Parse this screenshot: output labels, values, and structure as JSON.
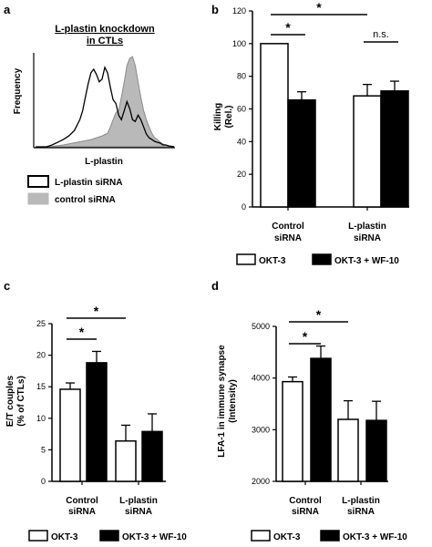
{
  "colors": {
    "white_bar": "#ffffff",
    "black_bar": "#000000",
    "control_fill": "#b9b9b9",
    "stroke": "#000000"
  },
  "panel_a": {
    "letter": "a",
    "title_line1": "L-plastin knockdown",
    "title_line2": "in CTLs",
    "xlabel": "L-plastin",
    "ylabel": "Frequency",
    "legend": [
      {
        "label": "L-plastin siRNA",
        "style": "open"
      },
      {
        "label": "control siRNA",
        "style": "filled-gray"
      }
    ]
  },
  "panel_b": {
    "letter": "b",
    "ylabel_line1": "Killing",
    "ylabel_line2": "(Rel.)",
    "groups": [
      {
        "line1": "Control",
        "line2": "siRNA"
      },
      {
        "line1": "L-plastin",
        "line2": "siRNA"
      }
    ],
    "legend": [
      {
        "label": "OKT-3",
        "style": "white"
      },
      {
        "label": "OKT-3 + WF-10",
        "style": "black"
      }
    ],
    "annotations": {
      "star": "*",
      "ns": "n.s."
    }
  },
  "panel_c": {
    "letter": "c",
    "ylabel_line1": "E/T couples",
    "ylabel_line2": "(% of CTLs)",
    "groups": [
      {
        "line1": "Control",
        "line2": "siRNA"
      },
      {
        "line1": "L-plastin",
        "line2": "siRNA"
      }
    ],
    "legend": [
      {
        "label": "OKT-3",
        "style": "white"
      },
      {
        "label": "OKT-3 + WF-10",
        "style": "black"
      }
    ],
    "annotations": {
      "star": "*"
    }
  },
  "panel_d": {
    "letter": "d",
    "ylabel_line1": "LFA-1 in immune synapse",
    "ylabel_line2": "(Intensity)",
    "groups": [
      {
        "line1": "Control",
        "line2": "siRNA"
      },
      {
        "line1": "L-plastin",
        "line2": "siRNA"
      }
    ],
    "legend": [
      {
        "label": "OKT-3",
        "style": "white"
      },
      {
        "label": "OKT-3 + WF-10",
        "style": "black"
      }
    ],
    "annotations": {
      "star": "*"
    }
  },
  "chart_data": [
    {
      "panel": "a",
      "type": "area",
      "title": "L-plastin knockdown in CTLs",
      "xlabel": "L-plastin",
      "ylabel": "Frequency",
      "series": [
        {
          "name": "L-plastin siRNA",
          "style": "open outline",
          "x": [
            0,
            4,
            8,
            12,
            16,
            20,
            24,
            28,
            32,
            34,
            36,
            38,
            40,
            42,
            44,
            46,
            48,
            50,
            52,
            54,
            56,
            58,
            60,
            62,
            64,
            66,
            68,
            70,
            72,
            74,
            76,
            78,
            80,
            82,
            84,
            86,
            88,
            90,
            92,
            94,
            96,
            100
          ],
          "values": [
            0,
            0,
            0,
            0.02,
            0.05,
            0.08,
            0.12,
            0.18,
            0.3,
            0.4,
            0.55,
            0.7,
            0.82,
            0.86,
            0.8,
            0.72,
            0.75,
            0.88,
            0.82,
            0.66,
            0.52,
            0.48,
            0.35,
            0.3,
            0.4,
            0.5,
            0.42,
            0.3,
            0.28,
            0.35,
            0.3,
            0.22,
            0.14,
            0.1,
            0.08,
            0.06,
            0.05,
            0.04,
            0.02,
            0.02,
            0.01,
            0
          ]
        },
        {
          "name": "control siRNA",
          "style": "filled gray",
          "x": [
            0,
            10,
            20,
            30,
            40,
            44,
            48,
            52,
            54,
            56,
            58,
            60,
            62,
            64,
            66,
            68,
            70,
            72,
            74,
            76,
            78,
            80,
            82,
            84,
            86,
            88,
            90,
            92,
            94,
            96,
            100
          ],
          "values": [
            0,
            0,
            0.02,
            0.05,
            0.08,
            0.1,
            0.12,
            0.15,
            0.22,
            0.3,
            0.38,
            0.4,
            0.55,
            0.72,
            0.9,
            0.98,
            1.0,
            0.9,
            0.72,
            0.55,
            0.4,
            0.3,
            0.22,
            0.15,
            0.1,
            0.08,
            0.05,
            0.03,
            0.02,
            0.01,
            0
          ]
        }
      ]
    },
    {
      "panel": "b",
      "type": "bar",
      "ylabel": "Killing (Rel.)",
      "ylim": [
        0,
        120
      ],
      "yticks": [
        0,
        20,
        40,
        60,
        80,
        100,
        120
      ],
      "categories": [
        "Control siRNA",
        "L-plastin siRNA"
      ],
      "series": [
        {
          "name": "OKT-3",
          "color": "#ffffff",
          "values": [
            100,
            68
          ],
          "errors": [
            0,
            7
          ]
        },
        {
          "name": "OKT-3 + WF-10",
          "color": "#000000",
          "values": [
            65.5,
            71
          ],
          "errors": [
            5,
            6
          ]
        }
      ],
      "significance": [
        {
          "from": [
            0,
            0
          ],
          "to": [
            0,
            1
          ],
          "label": "*"
        },
        {
          "from": [
            0,
            0
          ],
          "to": [
            1,
            0
          ],
          "label": "*"
        },
        {
          "from": [
            1,
            0
          ],
          "to": [
            1,
            1
          ],
          "label": "n.s."
        }
      ]
    },
    {
      "panel": "c",
      "type": "bar",
      "ylabel": "E/T couples (% of CTLs)",
      "ylim": [
        0,
        25
      ],
      "yticks": [
        0,
        5,
        10,
        15,
        20,
        25
      ],
      "categories": [
        "Control siRNA",
        "L-plastin siRNA"
      ],
      "series": [
        {
          "name": "OKT-3",
          "color": "#ffffff",
          "values": [
            14.6,
            6.4
          ],
          "errors": [
            1,
            2.5
          ]
        },
        {
          "name": "OKT-3 + WF-10",
          "color": "#000000",
          "values": [
            18.8,
            7.9
          ],
          "errors": [
            1.8,
            2.8
          ]
        }
      ],
      "significance": [
        {
          "from": [
            0,
            0
          ],
          "to": [
            0,
            1
          ],
          "label": "*"
        },
        {
          "from": [
            0,
            0
          ],
          "to": [
            1,
            0
          ],
          "label": "*"
        }
      ]
    },
    {
      "panel": "d",
      "type": "bar",
      "ylabel": "LFA-1 in immune synapse (Intensity)",
      "ylim": [
        2000,
        5000
      ],
      "yticks": [
        2000,
        3000,
        4000,
        5000
      ],
      "categories": [
        "Control siRNA",
        "L-plastin siRNA"
      ],
      "series": [
        {
          "name": "OKT-3",
          "color": "#ffffff",
          "values": [
            3930,
            3200
          ],
          "errors": [
            90,
            360
          ]
        },
        {
          "name": "OKT-3 + WF-10",
          "color": "#000000",
          "values": [
            4380,
            3180
          ],
          "errors": [
            240,
            370
          ]
        }
      ],
      "significance": [
        {
          "from": [
            0,
            0
          ],
          "to": [
            0,
            1
          ],
          "label": "*"
        },
        {
          "from": [
            0,
            0
          ],
          "to": [
            1,
            0
          ],
          "label": "*"
        }
      ]
    }
  ]
}
